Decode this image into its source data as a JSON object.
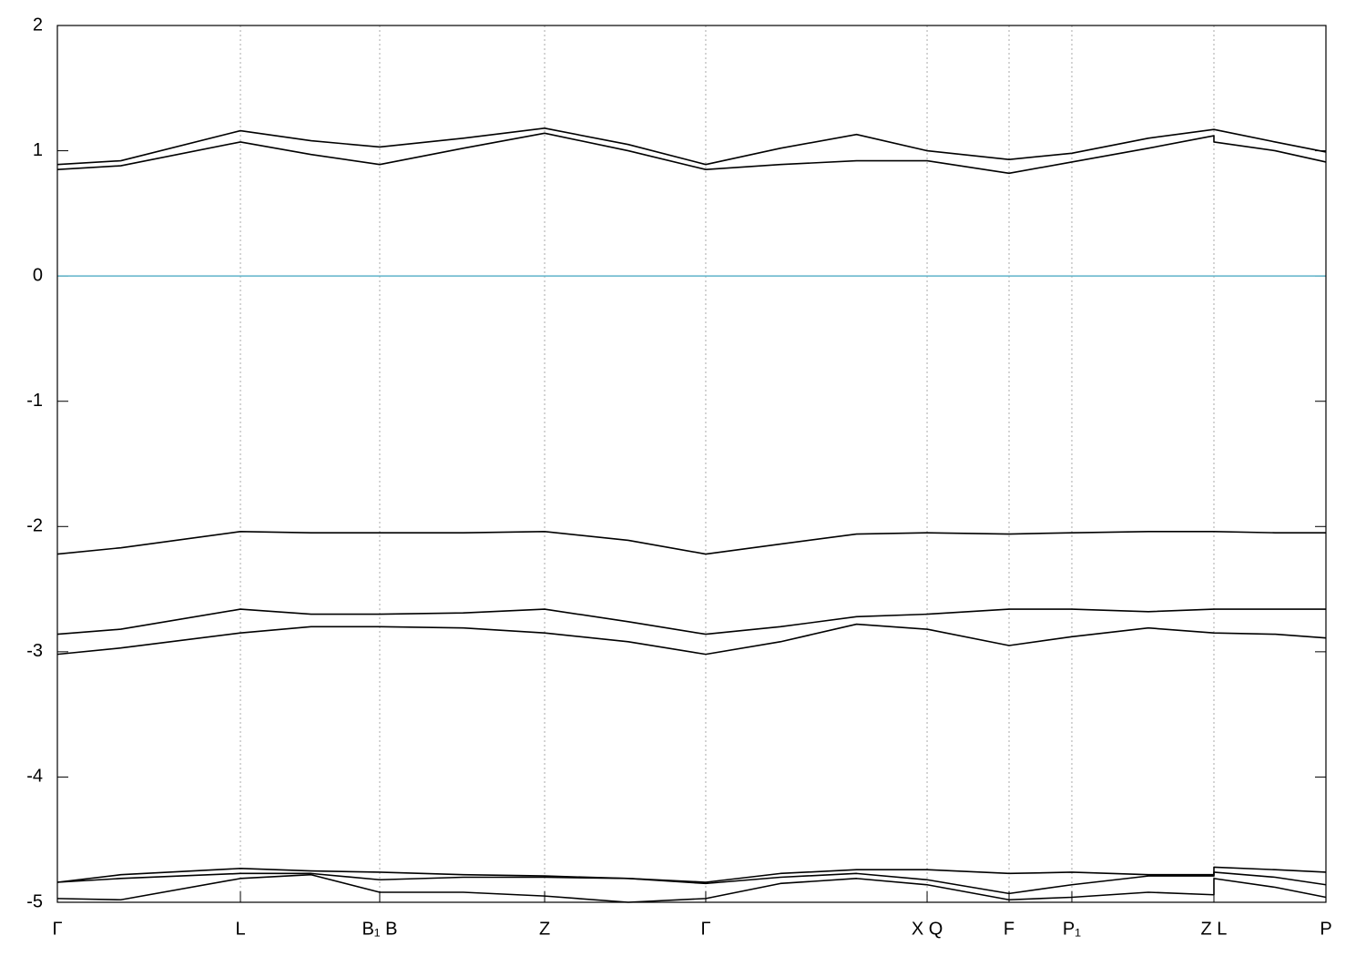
{
  "chart_data": {
    "type": "line",
    "x": [
      0,
      0.05,
      0.1443,
      0.2,
      0.2541,
      0.32,
      0.3841,
      0.45,
      0.5111,
      0.57,
      0.63,
      0.6856,
      0.7502,
      0.7997,
      0.86,
      0.9117,
      0.9117,
      0.96,
      1
    ],
    "xlim": [
      0,
      1
    ],
    "xticks": [
      {
        "value": 0,
        "label": "Γ"
      },
      {
        "value": 0.1443,
        "label": "L"
      },
      {
        "value": 0.2541,
        "label": "B₁ B"
      },
      {
        "value": 0.3841,
        "label": "Z"
      },
      {
        "value": 0.5111,
        "label": "Γ"
      },
      {
        "value": 0.6856,
        "label": "X Q"
      },
      {
        "value": 0.7502,
        "label": "F"
      },
      {
        "value": 0.7997,
        "label": "P₁"
      },
      {
        "value": 0.9117,
        "label": "Z L"
      },
      {
        "value": 1,
        "label": "P"
      }
    ],
    "ylim": [
      -5,
      2
    ],
    "yticks": [
      -5,
      -4,
      -3,
      -2,
      -1,
      0,
      1,
      2
    ],
    "grid": true,
    "reference_line": {
      "y": 0,
      "color": "#5fb3c9"
    },
    "series": [
      {
        "color": "#000000",
        "values": [
          0.89,
          0.92,
          1.16,
          1.08,
          1.03,
          1.1,
          1.18,
          1.05,
          0.89,
          1.02,
          1.13,
          1.0,
          0.93,
          0.98,
          1.1,
          1.17,
          1.17,
          1.07,
          0.99
        ]
      },
      {
        "color": "#000000",
        "values": [
          0.85,
          0.88,
          1.07,
          0.97,
          0.89,
          1.02,
          1.14,
          1.0,
          0.85,
          0.89,
          0.92,
          0.92,
          0.82,
          0.91,
          1.02,
          1.12,
          1.07,
          1.0,
          0.91
        ]
      },
      {
        "color": "#000000",
        "values": [
          -2.22,
          -2.17,
          -2.04,
          -2.05,
          -2.05,
          -2.05,
          -2.04,
          -2.11,
          -2.22,
          -2.14,
          -2.06,
          -2.05,
          -2.06,
          -2.05,
          -2.04,
          -2.04,
          -2.04,
          -2.05,
          -2.05
        ]
      },
      {
        "color": "#000000",
        "values": [
          -2.86,
          -2.82,
          -2.66,
          -2.7,
          -2.7,
          -2.69,
          -2.66,
          -2.76,
          -2.86,
          -2.8,
          -2.72,
          -2.7,
          -2.66,
          -2.66,
          -2.68,
          -2.66,
          -2.66,
          -2.66,
          -2.66
        ]
      },
      {
        "color": "#000000",
        "values": [
          -3.02,
          -2.97,
          -2.85,
          -2.8,
          -2.8,
          -2.81,
          -2.85,
          -2.92,
          -3.02,
          -2.92,
          -2.78,
          -2.82,
          -2.95,
          -2.88,
          -2.81,
          -2.85,
          -2.85,
          -2.86,
          -2.89
        ]
      },
      {
        "color": "#000000",
        "values": [
          -4.84,
          -4.78,
          -4.73,
          -4.75,
          -4.76,
          -4.78,
          -4.79,
          -4.81,
          -4.84,
          -4.77,
          -4.74,
          -4.74,
          -4.77,
          -4.76,
          -4.78,
          -4.78,
          -4.72,
          -4.74,
          -4.76
        ]
      },
      {
        "color": "#000000",
        "values": [
          -4.84,
          -4.81,
          -4.77,
          -4.77,
          -4.82,
          -4.8,
          -4.8,
          -4.81,
          -4.85,
          -4.8,
          -4.77,
          -4.82,
          -4.93,
          -4.86,
          -4.79,
          -4.79,
          -4.76,
          -4.8,
          -4.86
        ]
      },
      {
        "color": "#000000",
        "values": [
          -4.97,
          -4.98,
          -4.81,
          -4.78,
          -4.92,
          -4.92,
          -4.95,
          -5.0,
          -4.97,
          -4.85,
          -4.81,
          -4.86,
          -4.98,
          -4.96,
          -4.92,
          -4.94,
          -4.81,
          -4.88,
          -4.96
        ]
      }
    ]
  }
}
